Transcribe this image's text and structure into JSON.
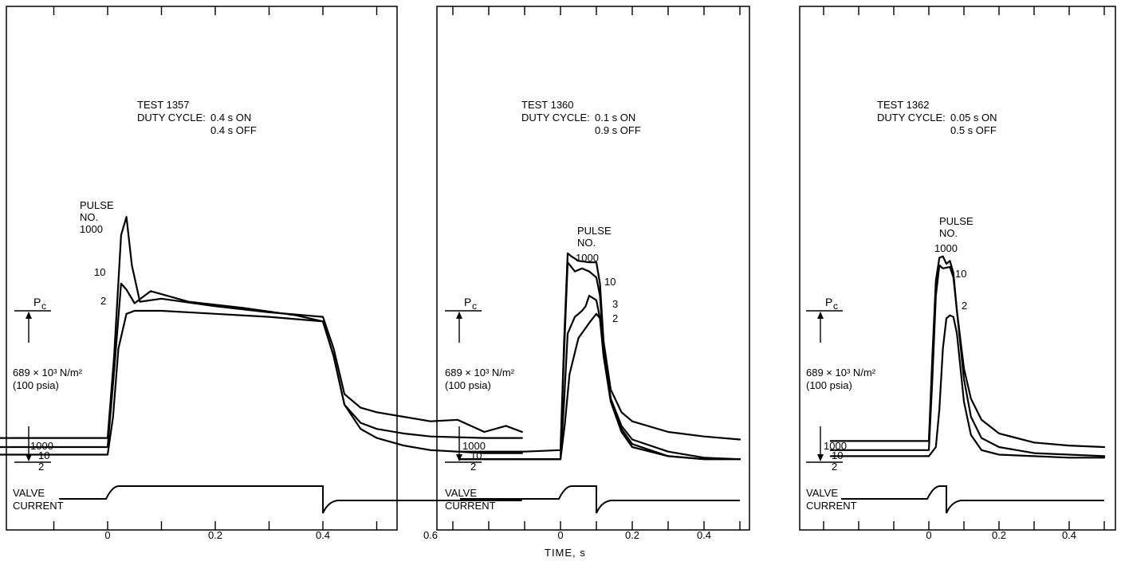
{
  "shared_xlabel": "TIME, s",
  "chart_data": [
    {
      "type": "line",
      "test": "TEST 1357",
      "duty_label": "DUTY CYCLE:",
      "duty_on": "0.4 s ON",
      "duty_off": "0.4 s OFF",
      "pulse_header": [
        "PULSE",
        "NO."
      ],
      "pc_label": "P",
      "pc_sub": "c",
      "scale_label_line1": "689 × 10³ N/m²",
      "scale_label_line2": "(100 psia)",
      "valve_label": [
        "VALVE",
        "CURRENT"
      ],
      "xlim": [
        -0.22,
        0.8
      ],
      "ylim": [
        -6,
        165
      ],
      "x_ticks": [
        0,
        0.2,
        0.4,
        0.6
      ],
      "x_tick_labels": [
        "0",
        "0.2",
        "0.4",
        "0.6"
      ],
      "pc_reference": 100,
      "series": [
        {
          "name": "1000",
          "x": [
            -0.2,
            0.0,
            0.012,
            0.025,
            0.035,
            0.045,
            0.06,
            0.1,
            0.2,
            0.3,
            0.4,
            0.42,
            0.44,
            0.47,
            0.5,
            0.55,
            0.6,
            0.65,
            0.7,
            0.74,
            0.77
          ],
          "y": [
            16,
            16,
            70,
            150,
            162,
            130,
            106,
            108,
            103,
            99,
            96,
            75,
            45,
            36,
            33,
            30,
            27,
            28,
            20,
            24,
            20
          ]
        },
        {
          "name": "10",
          "x": [
            -0.2,
            0.0,
            0.012,
            0.025,
            0.035,
            0.05,
            0.08,
            0.15,
            0.25,
            0.35,
            0.4,
            0.42,
            0.44,
            0.47,
            0.5,
            0.55,
            0.6,
            0.7,
            0.77
          ],
          "y": [
            10,
            10,
            60,
            118,
            114,
            105,
            113,
            106,
            102,
            97,
            93,
            70,
            38,
            26,
            22,
            19,
            17,
            16,
            16
          ]
        },
        {
          "name": "2",
          "x": [
            -0.2,
            0.0,
            0.01,
            0.02,
            0.035,
            0.05,
            0.1,
            0.2,
            0.3,
            0.4,
            0.42,
            0.44,
            0.47,
            0.5,
            0.55,
            0.6,
            0.7,
            0.77
          ],
          "y": [
            5,
            5,
            30,
            75,
            98,
            100,
            100,
            98,
            96,
            93,
            70,
            38,
            22,
            16,
            11,
            8,
            6,
            6
          ]
        }
      ],
      "valve_current": {
        "on": 0.0,
        "off": 0.4
      }
    },
    {
      "type": "line",
      "test": "TEST 1360",
      "duty_label": "DUTY CYCLE:",
      "duty_on": "0.1 s ON",
      "duty_off": "0.9 s OFF",
      "pulse_header": [
        "PULSE",
        "NO."
      ],
      "pc_label": "P",
      "pc_sub": "c",
      "scale_label_line1": "689 × 10³ N/m²",
      "scale_label_line2": "(100 psia)",
      "valve_label": [
        "VALVE",
        "CURRENT"
      ],
      "xlim": [
        -0.36,
        0.55
      ],
      "ylim": [
        -6,
        165
      ],
      "x_ticks": [
        0,
        0.2,
        0.4
      ],
      "x_tick_labels": [
        "0",
        "0.2",
        "0.4"
      ],
      "pc_reference": 100,
      "series": [
        {
          "name": "1000",
          "x": [
            -0.28,
            -0.1,
            0.0,
            0.01,
            0.02,
            0.03,
            0.05,
            0.08,
            0.1,
            0.11,
            0.12,
            0.14,
            0.17,
            0.2,
            0.3,
            0.4,
            0.5
          ],
          "y": [
            7,
            7,
            8,
            80,
            138,
            136,
            133,
            132,
            132,
            118,
            80,
            48,
            33,
            27,
            20,
            17,
            15
          ]
        },
        {
          "name": "10",
          "x": [
            -0.28,
            0.0,
            0.008,
            0.02,
            0.04,
            0.06,
            0.08,
            0.1,
            0.11,
            0.12,
            0.14,
            0.17,
            0.2,
            0.3,
            0.4,
            0.5
          ],
          "y": [
            2,
            2,
            60,
            132,
            126,
            128,
            126,
            122,
            110,
            75,
            42,
            24,
            15,
            7,
            3,
            2
          ]
        },
        {
          "name": "3",
          "x": [
            -0.28,
            0.0,
            0.01,
            0.02,
            0.04,
            0.06,
            0.07,
            0.08,
            0.1,
            0.11,
            0.12,
            0.14,
            0.17,
            0.2,
            0.3,
            0.4,
            0.5
          ],
          "y": [
            2,
            2,
            40,
            85,
            96,
            100,
            103,
            110,
            107,
            95,
            72,
            42,
            22,
            12,
            4,
            2,
            2
          ]
        },
        {
          "name": "2",
          "x": [
            -0.28,
            0.0,
            0.012,
            0.025,
            0.05,
            0.08,
            0.1,
            0.11,
            0.12,
            0.14,
            0.17,
            0.2,
            0.3,
            0.4,
            0.5
          ],
          "y": [
            2,
            2,
            25,
            58,
            82,
            92,
            98,
            95,
            70,
            40,
            20,
            10,
            4,
            2,
            2
          ]
        }
      ],
      "valve_current": {
        "on": 0.0,
        "off": 0.1
      }
    },
    {
      "type": "line",
      "test": "TEST 1362",
      "duty_label": "DUTY CYCLE:",
      "duty_on": "0.05 s ON",
      "duty_off": "0.5 s OFF",
      "pulse_header": [
        "PULSE",
        "NO."
      ],
      "pc_label": "P",
      "pc_sub": "c",
      "scale_label_line1": "689 × 10³ N/m²",
      "scale_label_line2": "(100 psia)",
      "valve_label": [
        "VALVE",
        "CURRENT"
      ],
      "xlim": [
        -0.33,
        0.54
      ],
      "ylim": [
        -6,
        165
      ],
      "x_ticks": [
        0,
        0.2,
        0.4
      ],
      "x_tick_labels": [
        "0",
        "0.2",
        "0.4"
      ],
      "pc_reference": 100,
      "series": [
        {
          "name": "1000",
          "x": [
            -0.28,
            0.0,
            0.01,
            0.02,
            0.03,
            0.04,
            0.05,
            0.06,
            0.07,
            0.08,
            0.1,
            0.12,
            0.15,
            0.2,
            0.3,
            0.4,
            0.5
          ],
          "y": [
            14,
            14,
            70,
            120,
            135,
            136,
            131,
            133,
            125,
            100,
            62,
            42,
            28,
            19,
            13,
            11,
            10
          ]
        },
        {
          "name": "10",
          "x": [
            -0.28,
            0.0,
            0.01,
            0.02,
            0.03,
            0.04,
            0.06,
            0.07,
            0.08,
            0.1,
            0.12,
            0.15,
            0.2,
            0.3,
            0.4,
            0.5
          ],
          "y": [
            8,
            8,
            55,
            110,
            130,
            128,
            129,
            122,
            100,
            55,
            30,
            16,
            10,
            6,
            5,
            4
          ]
        },
        {
          "name": "2",
          "x": [
            -0.28,
            0.0,
            0.02,
            0.03,
            0.04,
            0.05,
            0.06,
            0.07,
            0.08,
            0.1,
            0.12,
            0.15,
            0.2,
            0.3,
            0.4,
            0.5
          ],
          "y": [
            4,
            4,
            10,
            35,
            75,
            95,
            97,
            96,
            85,
            40,
            18,
            8,
            5,
            4,
            3,
            3
          ]
        }
      ],
      "valve_current": {
        "on": 0.0,
        "off": 0.05
      }
    }
  ]
}
